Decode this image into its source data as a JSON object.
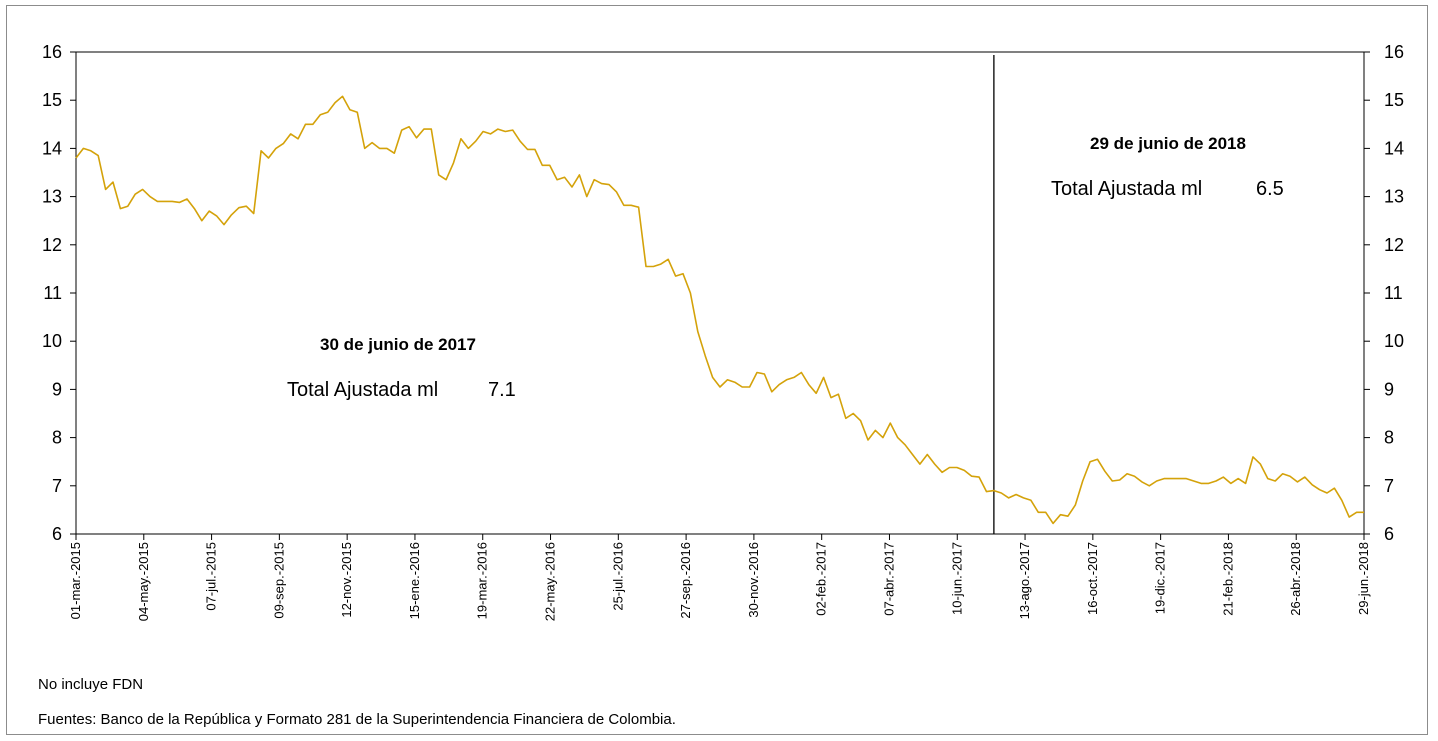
{
  "chart_data": {
    "type": "line",
    "series": [
      {
        "color": "#d4a20a",
        "values": [
          13.8,
          14.0,
          13.95,
          13.85,
          13.15,
          13.3,
          12.75,
          12.8,
          13.05,
          13.15,
          13.0,
          12.9,
          12.9,
          12.9,
          12.88,
          12.95,
          12.75,
          12.5,
          12.7,
          12.6,
          12.42,
          12.62,
          12.77,
          12.8,
          12.65,
          13.95,
          13.8,
          14.0,
          14.1,
          14.3,
          14.2,
          14.5,
          14.5,
          14.7,
          14.75,
          14.95,
          15.08,
          14.8,
          14.75,
          14.0,
          14.12,
          14.0,
          14.0,
          13.9,
          14.38,
          14.45,
          14.22,
          14.4,
          14.4,
          13.45,
          13.35,
          13.7,
          14.2,
          14.0,
          14.15,
          14.35,
          14.3,
          14.4,
          14.35,
          14.38,
          14.15,
          13.98,
          13.98,
          13.65,
          13.65,
          13.35,
          13.4,
          13.2,
          13.45,
          13.0,
          13.35,
          13.27,
          13.25,
          13.1,
          12.82,
          12.82,
          12.78,
          11.55,
          11.55,
          11.6,
          11.7,
          11.35,
          11.4,
          11.0,
          10.2,
          9.7,
          9.25,
          9.05,
          9.2,
          9.15,
          9.05,
          9.05,
          9.35,
          9.32,
          8.95,
          9.1,
          9.2,
          9.25,
          9.35,
          9.1,
          8.92,
          9.25,
          8.83,
          8.9,
          8.4,
          8.5,
          8.35,
          7.95,
          8.15,
          8.0,
          8.3,
          8.0,
          7.85,
          7.65,
          7.45,
          7.65,
          7.45,
          7.28,
          7.38,
          7.38,
          7.32,
          7.2,
          7.18,
          6.88,
          6.9,
          6.85,
          6.75,
          6.82,
          6.75,
          6.7,
          6.45,
          6.45,
          6.22,
          6.4,
          6.37,
          6.6,
          7.1,
          7.5,
          7.55,
          7.3,
          7.1,
          7.12,
          7.25,
          7.2,
          7.08,
          7.0,
          7.1,
          7.15,
          7.15,
          7.15,
          7.15,
          7.1,
          7.05,
          7.05,
          7.1,
          7.18,
          7.05,
          7.15,
          7.05,
          7.6,
          7.45,
          7.15,
          7.1,
          7.25,
          7.2,
          7.08,
          7.18,
          7.02,
          6.92,
          6.85,
          6.95,
          6.7,
          6.35,
          6.45,
          6.45
        ]
      }
    ],
    "x_tick_labels": [
      "01-mar.-2015",
      "04-may.-2015",
      "07-jul.-2015",
      "09-sep.-2015",
      "12-nov.-2015",
      "15-ene.-2016",
      "19-mar.-2016",
      "22-may.-2016",
      "25-jul.-2016",
      "27-sep.-2016",
      "30-nov.-2016",
      "02-feb.-2017",
      "07-abr.-2017",
      "10-jun.-2017",
      "13-ago.-2017",
      "16-oct.-2017",
      "19-dic.-2017",
      "21-feb.-2018",
      "26-abr.-2018",
      "29-jun.-2018"
    ],
    "ylim": [
      6,
      16
    ],
    "y_ticks": [
      6,
      7,
      8,
      9,
      10,
      11,
      12,
      13,
      14,
      15,
      16
    ],
    "y_tick_labels": [
      "6",
      "7",
      "8",
      "9",
      "10",
      "11",
      "12",
      "13",
      "14",
      "15",
      "16"
    ],
    "grid": false,
    "title": "",
    "xlabel": "",
    "ylabel": "",
    "vertical_marker_index": 124,
    "annotations": [
      {
        "title": "30 de junio de 2017",
        "label": "Total Ajustada ml",
        "value": "7.1"
      },
      {
        "title": "29 de junio de 2018",
        "label": "Total Ajustada ml",
        "value": "6.5"
      }
    ]
  },
  "notes": {
    "line1": "No incluye FDN",
    "line2": "Fuentes: Banco de la República y Formato 281 de la Superintendencia Financiera de Colombia."
  }
}
